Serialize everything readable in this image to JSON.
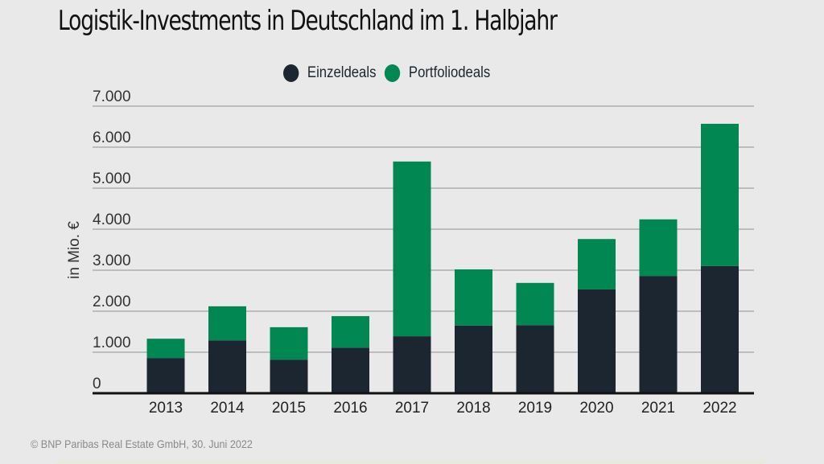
{
  "chart_data": {
    "type": "bar",
    "stacked": true,
    "title": "Logistik-Investments in Deutschland im 1. Halbjahr",
    "xlabel": "",
    "ylabel": "in Mio. €",
    "ylim": [
      0,
      7000
    ],
    "yticks": [
      0,
      1000,
      2000,
      3000,
      4000,
      5000,
      6000,
      7000
    ],
    "ytick_labels": [
      "0",
      "1.000",
      "2.000",
      "3.000",
      "4.000",
      "5.000",
      "6.000",
      "7.000"
    ],
    "grid": true,
    "legend_position": "top-center",
    "categories": [
      "2013",
      "2014",
      "2015",
      "2016",
      "2017",
      "2018",
      "2019",
      "2020",
      "2021",
      "2022"
    ],
    "series": [
      {
        "name": "Einzeldeals",
        "color": "#1b2630",
        "values": [
          860,
          1290,
          820,
          1110,
          1390,
          1650,
          1660,
          2530,
          2860,
          3100
        ]
      },
      {
        "name": "Portfoliodeals",
        "color": "#008752",
        "values": [
          470,
          830,
          790,
          770,
          4260,
          1370,
          1030,
          1230,
          1380,
          3470
        ]
      }
    ]
  },
  "footer": "© BNP Paribas Real Estate GmbH, 30. Juni 2022"
}
